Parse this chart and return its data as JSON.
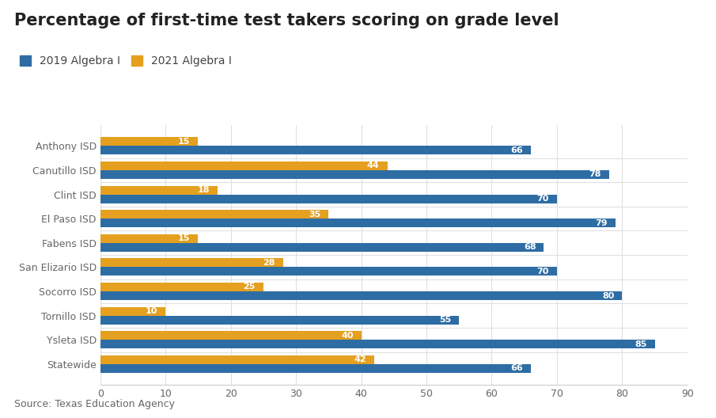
{
  "title": "Percentage of first-time test takers scoring on grade level",
  "source": "Source: Texas Education Agency",
  "categories": [
    "Anthony ISD",
    "Canutillo ISD",
    "Clint ISD",
    "El Paso ISD",
    "Fabens ISD",
    "San Elizario ISD",
    "Socorro ISD",
    "Tornillo ISD",
    "Ysleta ISD",
    "Statewide"
  ],
  "values_2019": [
    66,
    78,
    70,
    79,
    68,
    70,
    80,
    55,
    85,
    66
  ],
  "values_2021": [
    15,
    44,
    18,
    35,
    15,
    28,
    25,
    10,
    40,
    42
  ],
  "color_2019": "#2E6DA4",
  "color_2021": "#E5A020",
  "background_color": "#ffffff",
  "xlim": [
    0,
    90
  ],
  "xticks": [
    0,
    10,
    20,
    30,
    40,
    50,
    60,
    70,
    80,
    90
  ],
  "label_2019": "2019 Algebra I",
  "label_2021": "2021 Algebra I",
  "title_fontsize": 15,
  "legend_fontsize": 10,
  "tick_fontsize": 9,
  "ylabel_fontsize": 9,
  "source_fontsize": 9,
  "bar_height": 0.36,
  "value_label_fontsize": 8
}
